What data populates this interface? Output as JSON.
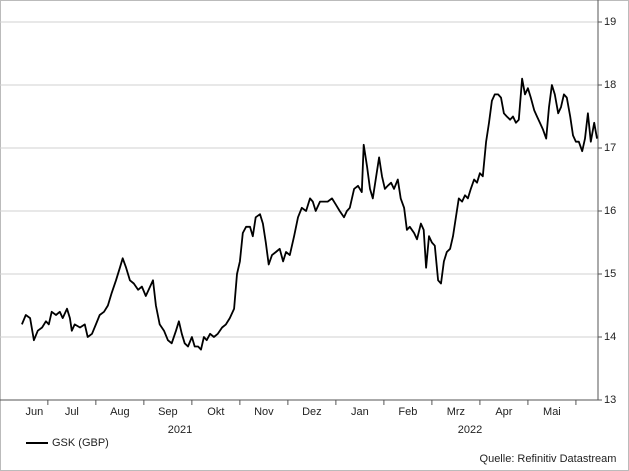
{
  "chart_data": {
    "type": "line",
    "series": [
      {
        "name": "GSK (GBP)",
        "color": "#000000",
        "x": [
          0.46,
          0.54,
          0.63,
          0.71,
          0.79,
          0.88,
          0.96,
          1.02,
          1.08,
          1.17,
          1.25,
          1.31,
          1.4,
          1.46,
          1.5,
          1.56,
          1.67,
          1.77,
          1.83,
          1.92,
          2,
          2.08,
          2.17,
          2.25,
          2.33,
          2.42,
          2.5,
          2.56,
          2.63,
          2.71,
          2.79,
          2.88,
          2.96,
          3.04,
          3.13,
          3.19,
          3.25,
          3.33,
          3.42,
          3.5,
          3.58,
          3.67,
          3.73,
          3.79,
          3.85,
          3.92,
          4,
          4.06,
          4.13,
          4.19,
          4.25,
          4.31,
          4.38,
          4.46,
          4.54,
          4.63,
          4.71,
          4.79,
          4.88,
          4.94,
          5,
          5.06,
          5.13,
          5.21,
          5.27,
          5.33,
          5.42,
          5.48,
          5.54,
          5.6,
          5.67,
          5.75,
          5.83,
          5.9,
          5.96,
          6.04,
          6.13,
          6.21,
          6.29,
          6.38,
          6.46,
          6.52,
          6.58,
          6.67,
          6.75,
          6.83,
          6.92,
          7,
          7.08,
          7.17,
          7.23,
          7.29,
          7.38,
          7.46,
          7.54,
          7.58,
          7.65,
          7.71,
          7.77,
          7.83,
          7.9,
          7.96,
          8.02,
          8.08,
          8.15,
          8.21,
          8.29,
          8.35,
          8.42,
          8.48,
          8.54,
          8.63,
          8.69,
          8.77,
          8.83,
          8.88,
          8.94,
          9,
          9.06,
          9.13,
          9.19,
          9.25,
          9.31,
          9.38,
          9.44,
          9.5,
          9.56,
          9.63,
          9.69,
          9.75,
          9.81,
          9.88,
          9.94,
          10,
          10.06,
          10.13,
          10.19,
          10.25,
          10.31,
          10.38,
          10.44,
          10.5,
          10.56,
          10.63,
          10.69,
          10.75,
          10.81,
          10.88,
          10.94,
          11,
          11.06,
          11.13,
          11.19,
          11.25,
          11.31,
          11.38,
          11.44,
          11.5,
          11.56,
          11.63,
          11.69,
          11.75,
          11.81,
          11.88,
          11.94,
          12,
          12.06,
          12.13,
          12.19,
          12.25,
          12.31,
          12.38,
          12.44
        ],
        "values": [
          14.2,
          14.35,
          14.3,
          13.95,
          14.1,
          14.15,
          14.25,
          14.2,
          14.4,
          14.35,
          14.4,
          14.3,
          14.45,
          14.3,
          14.1,
          14.2,
          14.15,
          14.2,
          14.0,
          14.05,
          14.2,
          14.35,
          14.4,
          14.5,
          14.7,
          14.9,
          15.1,
          15.25,
          15.1,
          14.9,
          14.85,
          14.75,
          14.8,
          14.65,
          14.8,
          14.9,
          14.5,
          14.2,
          14.1,
          13.95,
          13.9,
          14.1,
          14.25,
          14.05,
          13.9,
          13.85,
          14.0,
          13.85,
          13.85,
          13.8,
          14.0,
          13.95,
          14.05,
          14.0,
          14.05,
          14.15,
          14.2,
          14.3,
          14.45,
          15.0,
          15.2,
          15.65,
          15.75,
          15.75,
          15.6,
          15.9,
          15.95,
          15.8,
          15.5,
          15.15,
          15.3,
          15.35,
          15.4,
          15.2,
          15.35,
          15.3,
          15.6,
          15.9,
          16.05,
          16.0,
          16.2,
          16.15,
          16.0,
          16.15,
          16.15,
          16.15,
          16.2,
          16.1,
          16.0,
          15.9,
          16.0,
          16.05,
          16.35,
          16.4,
          16.3,
          17.05,
          16.7,
          16.35,
          16.2,
          16.5,
          16.85,
          16.55,
          16.35,
          16.4,
          16.45,
          16.35,
          16.5,
          16.2,
          16.05,
          15.7,
          15.75,
          15.65,
          15.55,
          15.8,
          15.7,
          15.1,
          15.6,
          15.5,
          15.45,
          14.9,
          14.85,
          15.2,
          15.35,
          15.4,
          15.6,
          15.9,
          16.2,
          16.15,
          16.25,
          16.2,
          16.35,
          16.5,
          16.45,
          16.6,
          16.55,
          17.1,
          17.4,
          17.75,
          17.85,
          17.85,
          17.8,
          17.55,
          17.5,
          17.45,
          17.5,
          17.4,
          17.45,
          18.1,
          17.85,
          17.95,
          17.8,
          17.6,
          17.5,
          17.4,
          17.3,
          17.15,
          17.65,
          18.0,
          17.85,
          17.55,
          17.65,
          17.85,
          17.8,
          17.5,
          17.2,
          17.1,
          17.1,
          16.95,
          17.15,
          17.55,
          17.1,
          17.4,
          17.15
        ]
      }
    ],
    "xlim": [
      0.42,
      12.46
    ],
    "xticks": [
      {
        "value": 0.72,
        "label": "Jun"
      },
      {
        "value": 1.5,
        "label": "Jul"
      },
      {
        "value": 2.5,
        "label": "Aug"
      },
      {
        "value": 3.5,
        "label": "Sep"
      },
      {
        "value": 4.5,
        "label": "Okt"
      },
      {
        "value": 5.5,
        "label": "Nov"
      },
      {
        "value": 6.5,
        "label": "Dez"
      },
      {
        "value": 7.5,
        "label": "Jan"
      },
      {
        "value": 8.5,
        "label": "Feb"
      },
      {
        "value": 9.5,
        "label": "Mrz"
      },
      {
        "value": 10.5,
        "label": "Apr"
      },
      {
        "value": 11.5,
        "label": "Mai"
      }
    ],
    "xminor": [
      1,
      2,
      3,
      4,
      5,
      6,
      7,
      8,
      9,
      10,
      11,
      12
    ],
    "year_labels": [
      "2021",
      "2022"
    ],
    "ylim": [
      13,
      19
    ],
    "yticks": [
      13,
      14,
      15,
      16,
      17,
      18,
      19
    ],
    "grid": true,
    "source": "Quelle: Refinitiv Datastream"
  }
}
